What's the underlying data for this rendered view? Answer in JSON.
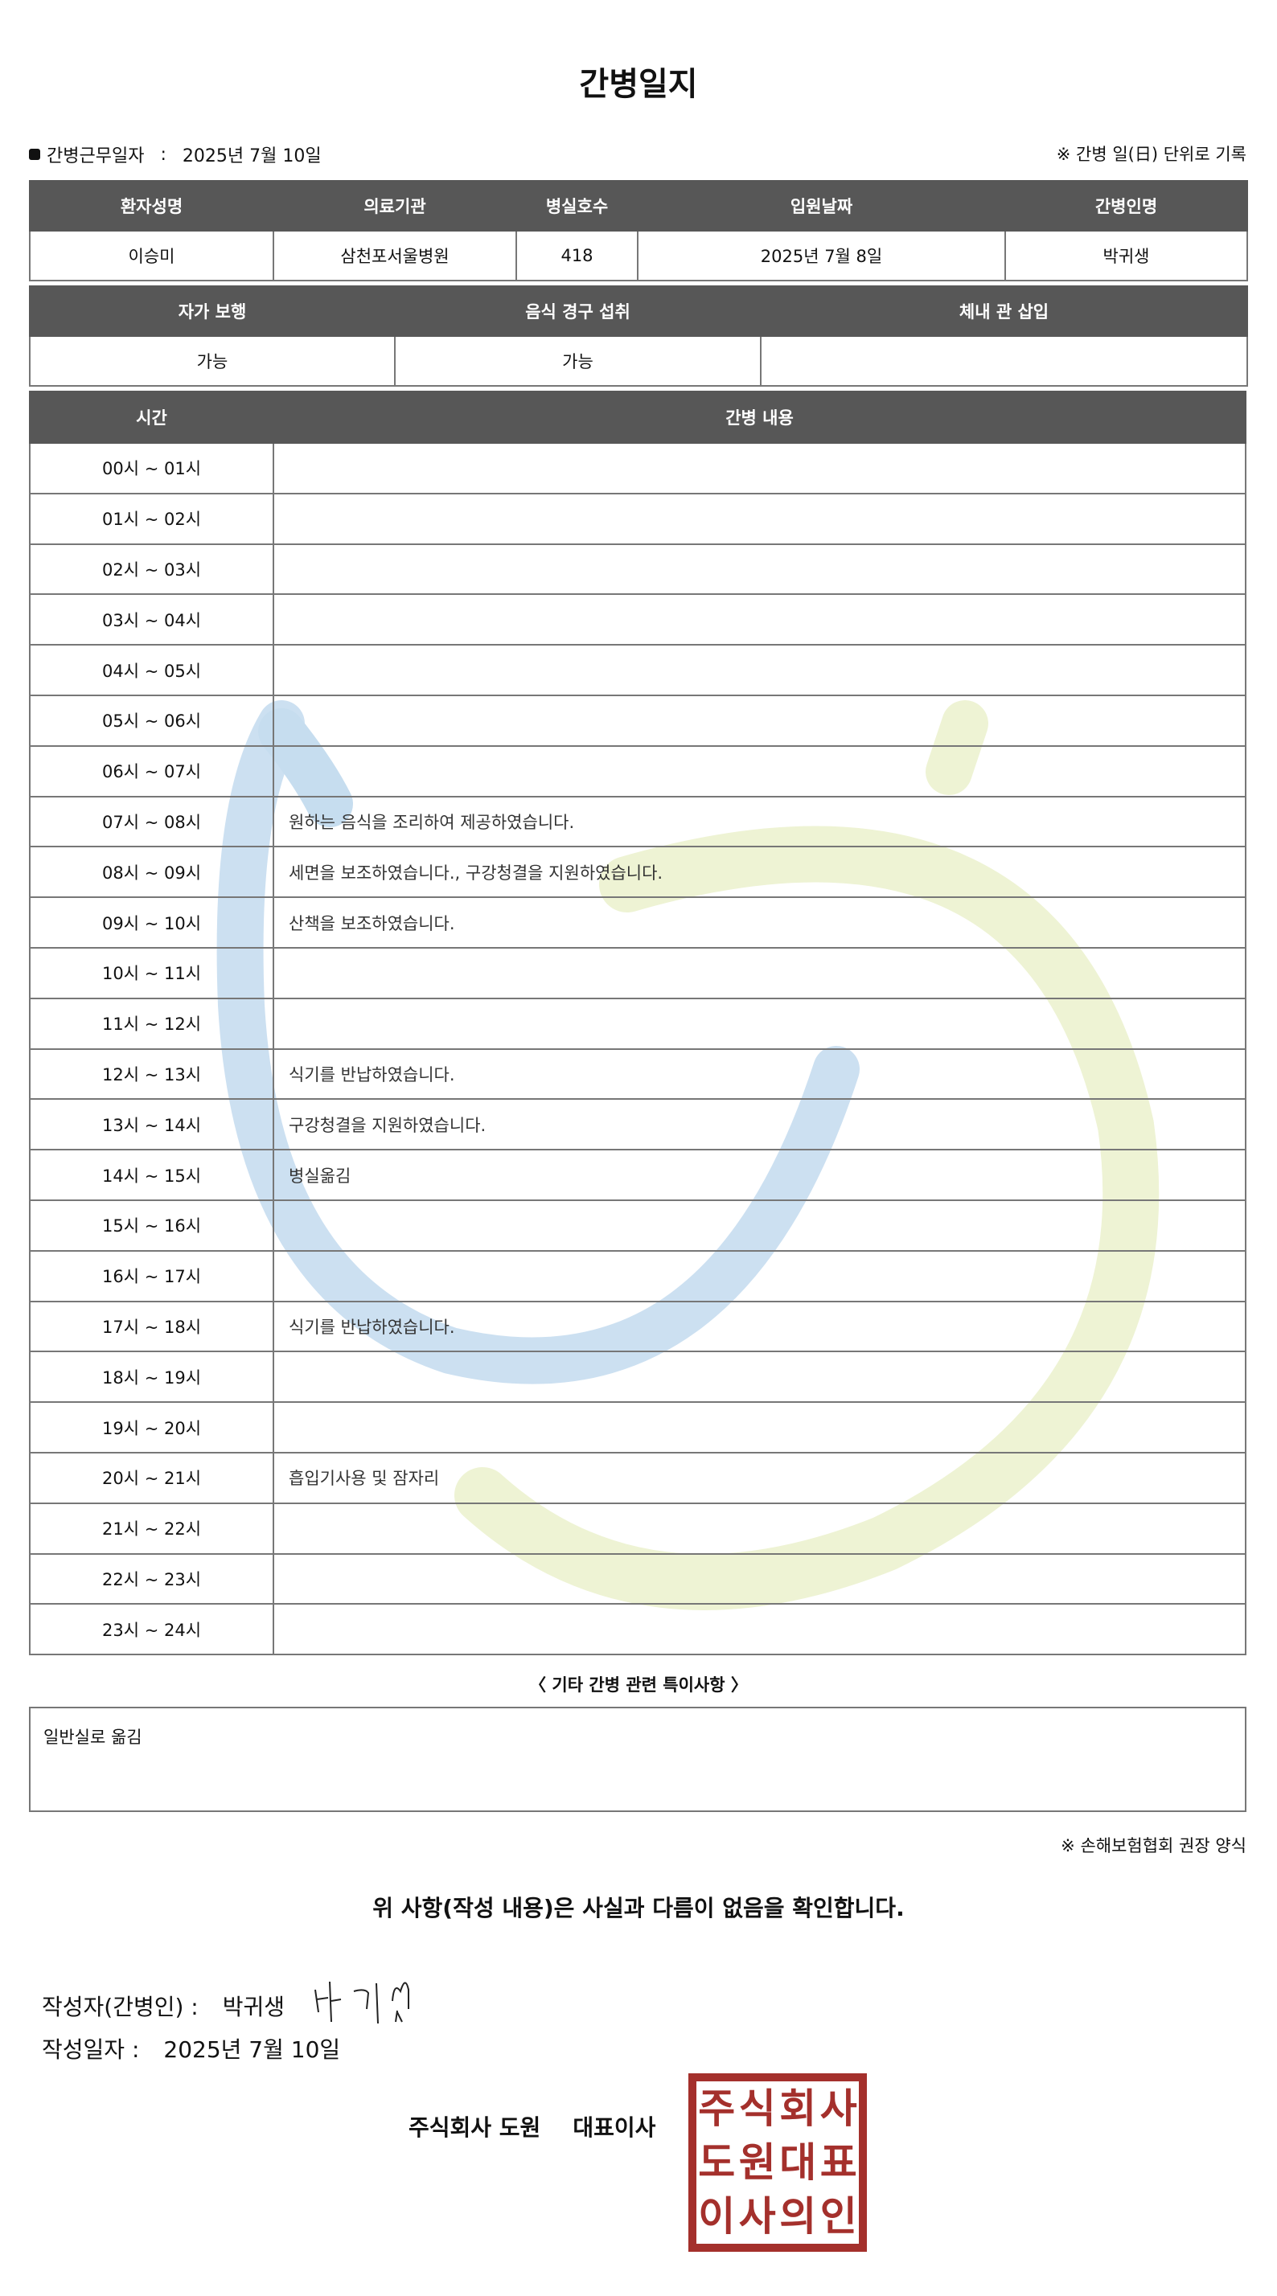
{
  "title": "간병일지",
  "info": {
    "work_date_label": "간병근무일자",
    "work_date_sep": ":",
    "work_date": "2025년 7월 10일",
    "unit_note": "※ 간병 일(日) 단위로 기록"
  },
  "patient_table": {
    "headers": [
      "환자성명",
      "의료기관",
      "병실호수",
      "입원날짜",
      "간병인명"
    ],
    "values": [
      "이승미",
      "삼천포서울병원",
      "418",
      "2025년 7월 8일",
      "박귀생"
    ]
  },
  "status_table": {
    "headers": [
      "자가 보행",
      "음식 경구 섭취",
      "체내 관 삽입"
    ],
    "values": [
      "가능",
      "가능",
      ""
    ]
  },
  "log_table": {
    "headers": [
      "시간",
      "간병 내용"
    ],
    "rows": [
      [
        "00시 ~ 01시",
        ""
      ],
      [
        "01시 ~ 02시",
        ""
      ],
      [
        "02시 ~ 03시",
        ""
      ],
      [
        "03시 ~ 04시",
        ""
      ],
      [
        "04시 ~ 05시",
        ""
      ],
      [
        "05시 ~ 06시",
        ""
      ],
      [
        "06시 ~ 07시",
        ""
      ],
      [
        "07시 ~ 08시",
        "원하는 음식을 조리하여 제공하였습니다."
      ],
      [
        "08시 ~ 09시",
        "세면을 보조하였습니다., 구강청결을 지원하였습니다."
      ],
      [
        "09시 ~ 10시",
        "산책을 보조하였습니다."
      ],
      [
        "10시 ~ 11시",
        ""
      ],
      [
        "11시 ~ 12시",
        ""
      ],
      [
        "12시 ~ 13시",
        "식기를 반납하였습니다."
      ],
      [
        "13시 ~ 14시",
        "구강청결을 지원하였습니다."
      ],
      [
        "14시 ~ 15시",
        "병실옮김"
      ],
      [
        "15시 ~ 16시",
        ""
      ],
      [
        "16시 ~ 17시",
        ""
      ],
      [
        "17시 ~ 18시",
        "식기를 반납하였습니다."
      ],
      [
        "18시 ~ 19시",
        ""
      ],
      [
        "19시 ~ 20시",
        ""
      ],
      [
        "20시 ~ 21시",
        "흡입기사용 및 잠자리"
      ],
      [
        "21시 ~ 22시",
        ""
      ],
      [
        "22시 ~ 23시",
        ""
      ],
      [
        "23시 ~ 24시",
        ""
      ]
    ]
  },
  "special": {
    "title": "〈 기타 간병 관련 특이사항 〉",
    "content": "일반실로 옮김"
  },
  "form_note": "※ 손해보험협회 권장 양식",
  "confirm": "위 사항(작성 내용)은 사실과 다름이 없음을 확인합니다.",
  "writer": {
    "label": "작성자(간병인) :",
    "name": "박귀생",
    "signature": "박귀생"
  },
  "written_date": {
    "label": "작성일자 :",
    "value": "2025년 7월 10일"
  },
  "company": {
    "name": "주식회사 도원",
    "title": "대표이사"
  },
  "stamp": {
    "chars": [
      "주",
      "식",
      "회",
      "사",
      "도",
      "원",
      "대",
      "표",
      "이",
      "사",
      "의",
      "인"
    ],
    "color": "#a4302c"
  },
  "colors": {
    "header_bg": "#575757",
    "watermark_blue": "#c6ddef",
    "watermark_green": "#eef3d4"
  }
}
